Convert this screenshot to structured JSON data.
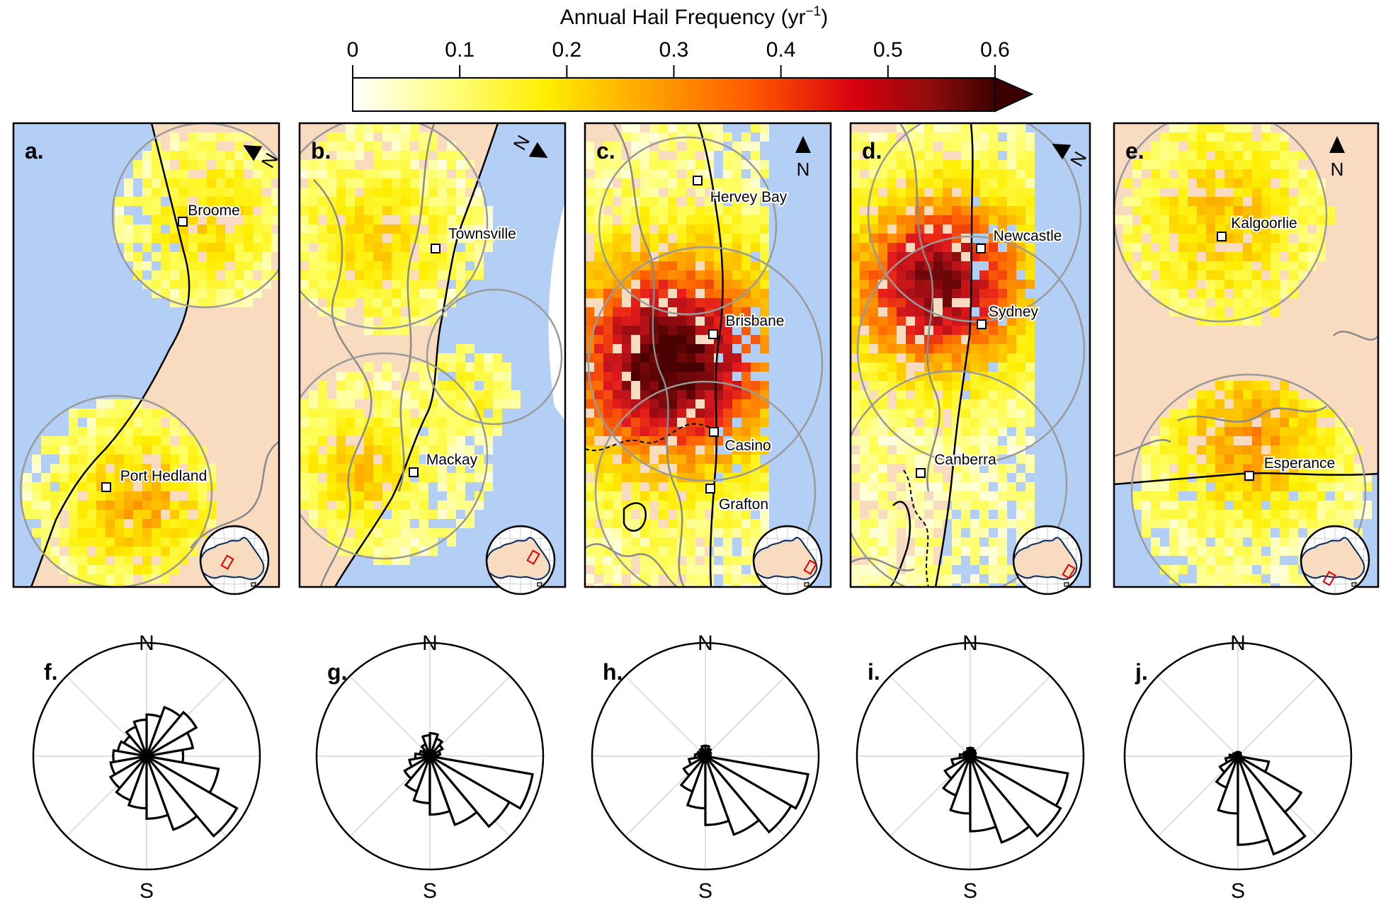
{
  "colorbar": {
    "title": "Annual Hail Frequency (yr",
    "title_sup": "−1",
    "title_close": ")",
    "ticks": [
      "0",
      "0.1",
      "0.2",
      "0.3",
      "0.4",
      "0.5",
      "0.6"
    ],
    "range": [
      0,
      0.6
    ],
    "extend": "max",
    "colors": [
      "#ffffff",
      "#ffff66",
      "#ffee00",
      "#ffb000",
      "#ff6a00",
      "#e41a1c",
      "#a50f15",
      "#4a0000"
    ]
  },
  "colors": {
    "ocean": "#b3cff5",
    "land": "#f9dcc0",
    "outline": "#000000",
    "radius_circle": "#9a9a9a",
    "inset_box": "#e00000"
  },
  "panels": [
    {
      "letter": "a.",
      "north_label": "N",
      "north_rotation_deg": -60,
      "hotspot": 0.18,
      "cities": [
        "Broome",
        "Port Hedland"
      ]
    },
    {
      "letter": "b.",
      "north_label": "N",
      "north_rotation_deg": 120,
      "hotspot": 0.16,
      "cities": [
        "Townsville",
        "Mackay"
      ]
    },
    {
      "letter": "c.",
      "north_label": "N",
      "north_rotation_deg": 0,
      "hotspot": 0.62,
      "cities": [
        "Hervey Bay",
        "Brisbane",
        "Casino",
        "Grafton"
      ]
    },
    {
      "letter": "d.",
      "north_label": "N",
      "north_rotation_deg": -60,
      "hotspot": 0.55,
      "cities": [
        "Newcastle",
        "Sydney",
        "Canberra"
      ]
    },
    {
      "letter": "e.",
      "north_label": "N",
      "north_rotation_deg": 0,
      "hotspot": 0.2,
      "cities": [
        "Kalgoorlie",
        "Esperance"
      ]
    }
  ],
  "roses": [
    {
      "letter": "f.",
      "north": "N",
      "south": "S",
      "values": [
        0.35,
        0.45,
        0.55,
        0.5,
        0.4,
        0.35,
        0.3,
        0.25,
        0.28,
        0.32,
        0.35,
        0.4,
        0.45,
        0.5,
        0.6,
        0.75,
        1.0,
        0.7
      ]
    },
    {
      "letter": "g.",
      "north": "N",
      "south": "S",
      "values": [
        0.08,
        0.1,
        0.14,
        0.18,
        0.22,
        0.2,
        0.12,
        0.08,
        0.1,
        0.14,
        0.2,
        0.28,
        0.36,
        0.45,
        0.56,
        0.7,
        0.88,
        1.0
      ]
    },
    {
      "letter": "h.",
      "north": "N",
      "south": "S",
      "values": [
        0.05,
        0.05,
        0.06,
        0.08,
        0.1,
        0.1,
        0.08,
        0.06,
        0.08,
        0.1,
        0.16,
        0.24,
        0.36,
        0.5,
        0.66,
        0.8,
        0.95,
        1.0
      ]
    },
    {
      "letter": "i.",
      "north": "N",
      "south": "S",
      "values": [
        0.05,
        0.05,
        0.06,
        0.07,
        0.08,
        0.08,
        0.06,
        0.05,
        0.07,
        0.1,
        0.18,
        0.28,
        0.4,
        0.55,
        0.72,
        0.88,
        1.0,
        0.95
      ]
    },
    {
      "letter": "j.",
      "north": "N",
      "south": "S",
      "values": [
        0.03,
        0.03,
        0.03,
        0.04,
        0.04,
        0.04,
        0.04,
        0.04,
        0.05,
        0.08,
        0.12,
        0.2,
        0.32,
        0.55,
        0.85,
        1.0,
        0.7,
        0.3
      ]
    }
  ]
}
